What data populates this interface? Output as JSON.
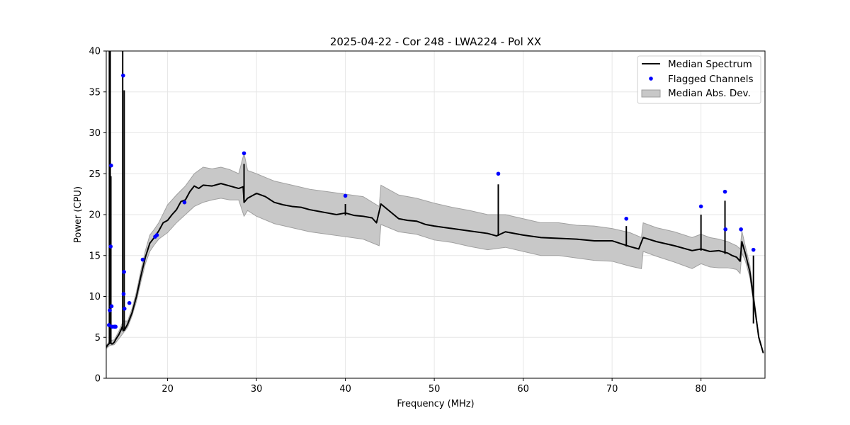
{
  "chart_data": {
    "type": "line",
    "title": "2025-04-22 - Cor 248 - LWA224 - Pol XX",
    "xlabel": "Frequency (MHz)",
    "ylabel": "Power (CPU)",
    "xlim": [
      13.1,
      87.2
    ],
    "ylim": [
      0,
      40
    ],
    "xticks": [
      20,
      30,
      40,
      50,
      60,
      70,
      80
    ],
    "yticks": [
      0,
      5,
      10,
      15,
      20,
      25,
      30,
      35,
      40
    ],
    "grid": true,
    "legend_position": "top-right",
    "colors": {
      "median": "#000000",
      "flagged": "#0000ff",
      "mad_fill": "#c8c8c8",
      "mad_edge": "#a0a0a0",
      "grid": "#e6e6e6"
    },
    "series": [
      {
        "name": "Median Spectrum",
        "kind": "line",
        "x": [
          13.1,
          13.3,
          13.5,
          13.6,
          13.7,
          13.8,
          14.0,
          14.2,
          14.5,
          14.8,
          14.9,
          15.0,
          15.2,
          15.5,
          16.0,
          16.5,
          17.0,
          17.5,
          18.0,
          18.5,
          19.0,
          19.5,
          20.0,
          20.5,
          21.0,
          21.5,
          22.0,
          22.5,
          23.0,
          23.5,
          24.0,
          25.0,
          26.0,
          27.0,
          28.0,
          28.5,
          28.6,
          29.0,
          30.0,
          31.0,
          32.0,
          33.0,
          34.0,
          35.0,
          36.0,
          37.0,
          38.0,
          39.0,
          40.0,
          41.0,
          42.0,
          43.0,
          43.5,
          44.0,
          45.0,
          46.0,
          47.0,
          48.0,
          49.0,
          50.0,
          52.0,
          54.0,
          56.0,
          57.0,
          58.0,
          60.0,
          62.0,
          64.0,
          66.0,
          68.0,
          70.0,
          72.0,
          73.0,
          73.5,
          75.0,
          77.0,
          79.0,
          80.0,
          81.0,
          82.0,
          83.0,
          83.5,
          84.0,
          84.4,
          84.6,
          85.0,
          85.5,
          86.0,
          86.5,
          87.0
        ],
        "values": [
          3.8,
          4.1,
          4.3,
          4.3,
          4.2,
          4.2,
          4.4,
          4.8,
          5.3,
          6.0,
          6.3,
          5.8,
          6.0,
          6.6,
          8.0,
          10.0,
          12.5,
          14.8,
          16.5,
          17.2,
          18.0,
          19.0,
          19.3,
          20.0,
          20.6,
          21.6,
          21.8,
          22.8,
          23.5,
          23.2,
          23.6,
          23.5,
          23.8,
          23.5,
          23.2,
          23.4,
          21.5,
          22.0,
          22.6,
          22.2,
          21.5,
          21.2,
          21.0,
          20.9,
          20.6,
          20.4,
          20.2,
          20.0,
          20.2,
          19.9,
          19.8,
          19.6,
          19.0,
          21.3,
          20.4,
          19.5,
          19.3,
          19.2,
          18.8,
          18.6,
          18.3,
          18.0,
          17.7,
          17.4,
          17.9,
          17.5,
          17.2,
          17.1,
          17.0,
          16.8,
          16.8,
          16.1,
          15.8,
          17.2,
          16.7,
          16.2,
          15.6,
          15.8,
          15.5,
          15.6,
          15.3,
          15.0,
          14.8,
          14.3,
          16.7,
          15.2,
          13.0,
          9.0,
          5.0,
          3.1
        ]
      },
      {
        "name": "Flagged Channels",
        "kind": "scatter",
        "x": [
          13.4,
          13.5,
          13.6,
          13.65,
          13.7,
          13.75,
          14.0,
          14.15,
          15.0,
          15.05,
          15.1,
          15.15,
          15.7,
          17.2,
          18.6,
          18.8,
          21.9,
          28.6,
          40.0,
          57.2,
          71.6,
          80.0,
          82.7,
          82.75,
          84.5,
          85.9
        ],
        "values": [
          6.5,
          8.3,
          16.1,
          26.0,
          8.8,
          6.3,
          6.3,
          6.3,
          37.0,
          10.3,
          13.0,
          8.5,
          9.2,
          14.5,
          17.3,
          17.5,
          21.5,
          27.5,
          22.3,
          25.0,
          19.5,
          21.0,
          22.8,
          18.2,
          18.2,
          15.7
        ]
      },
      {
        "name": "Median Abs. Dev.",
        "kind": "band",
        "x": [
          13.1,
          13.5,
          14.0,
          14.5,
          15.0,
          15.5,
          16.0,
          16.5,
          17.0,
          17.5,
          18.0,
          18.5,
          19.0,
          20.0,
          21.0,
          22.0,
          23.0,
          24.0,
          25.0,
          26.0,
          27.0,
          28.0,
          28.6,
          29.0,
          30.0,
          32.0,
          34.0,
          36.0,
          38.0,
          40.0,
          42.0,
          43.8,
          44.0,
          46.0,
          48.0,
          50.0,
          52.0,
          54.0,
          56.0,
          58.0,
          60.0,
          62.0,
          64.0,
          66.0,
          68.0,
          70.0,
          72.0,
          73.3,
          73.5,
          75.0,
          77.0,
          79.0,
          80.0,
          81.0,
          82.0,
          83.0,
          84.0,
          84.4,
          84.6,
          85.0,
          85.5,
          86.0,
          86.5,
          87.0
        ],
        "lower": [
          3.6,
          4.0,
          4.1,
          4.8,
          5.5,
          6.2,
          7.6,
          9.4,
          11.8,
          14.0,
          15.5,
          16.3,
          17.0,
          17.8,
          19.0,
          20.0,
          21.0,
          21.5,
          21.8,
          22.0,
          21.8,
          21.8,
          19.8,
          20.5,
          19.8,
          18.9,
          18.4,
          17.9,
          17.6,
          17.3,
          17.0,
          16.2,
          18.8,
          17.9,
          17.6,
          16.9,
          16.6,
          16.1,
          15.7,
          16.0,
          15.5,
          15.0,
          15.0,
          14.7,
          14.4,
          14.3,
          13.7,
          13.4,
          15.5,
          14.9,
          14.2,
          13.4,
          14.0,
          13.6,
          13.5,
          13.5,
          13.3,
          12.8,
          15.3,
          14.3,
          12.3,
          8.6,
          4.8,
          3.0
        ],
        "upper": [
          4.0,
          4.6,
          4.7,
          5.7,
          7.0,
          7.0,
          8.5,
          10.6,
          13.2,
          15.6,
          17.5,
          18.2,
          19.0,
          21.2,
          22.4,
          23.5,
          25.0,
          25.8,
          25.6,
          25.8,
          25.5,
          25.0,
          27.5,
          25.4,
          25.0,
          24.1,
          23.6,
          23.1,
          22.8,
          22.5,
          22.2,
          21.0,
          23.6,
          22.4,
          22.0,
          21.4,
          20.9,
          20.5,
          20.0,
          20.0,
          19.5,
          19.0,
          19.0,
          18.7,
          18.6,
          18.3,
          17.8,
          17.2,
          19.0,
          18.4,
          17.9,
          17.2,
          17.6,
          17.2,
          17.0,
          16.7,
          16.2,
          15.8,
          18.0,
          16.1,
          13.8,
          9.6,
          5.2,
          3.2
        ]
      }
    ],
    "spikes": [
      {
        "x": 13.45,
        "low": 4.3,
        "high": 40
      },
      {
        "x": 13.55,
        "low": 4.3,
        "high": 40
      },
      {
        "x": 13.62,
        "low": 4.3,
        "high": 24.7
      },
      {
        "x": 14.95,
        "low": 6.0,
        "high": 40
      },
      {
        "x": 15.12,
        "low": 5.8,
        "high": 35.2
      },
      {
        "x": 28.6,
        "low": 21.5,
        "high": 26.2
      },
      {
        "x": 40.0,
        "low": 19.9,
        "high": 21.3
      },
      {
        "x": 57.2,
        "low": 17.4,
        "high": 23.7
      },
      {
        "x": 71.6,
        "low": 16.1,
        "high": 18.6
      },
      {
        "x": 80.0,
        "low": 15.6,
        "high": 20.0
      },
      {
        "x": 82.7,
        "low": 15.2,
        "high": 21.7
      },
      {
        "x": 85.9,
        "low": 6.7,
        "high": 15.0
      }
    ]
  }
}
